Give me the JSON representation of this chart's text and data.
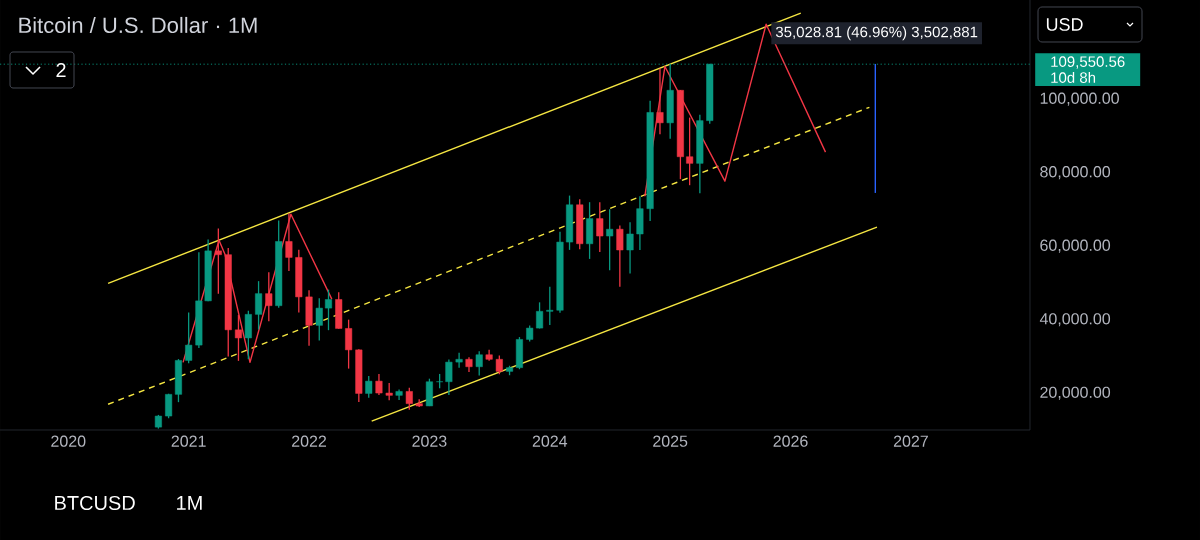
{
  "chart_data": {
    "type": "candlestick",
    "title": "Bitcoin / U.S. Dollar · 1M",
    "x": [
      "2020-10",
      "2020-11",
      "2020-12",
      "2021-01",
      "2021-02",
      "2021-03",
      "2021-04",
      "2021-05",
      "2021-06",
      "2021-07",
      "2021-08",
      "2021-09",
      "2021-10",
      "2021-11",
      "2021-12",
      "2022-01",
      "2022-02",
      "2022-03",
      "2022-04",
      "2022-05",
      "2022-06",
      "2022-07",
      "2022-08",
      "2022-09",
      "2022-10",
      "2022-11",
      "2022-12",
      "2023-01",
      "2023-02",
      "2023-03",
      "2023-04",
      "2023-05",
      "2023-06",
      "2023-07",
      "2023-08",
      "2023-09",
      "2023-10",
      "2023-11",
      "2023-12",
      "2024-01",
      "2024-02",
      "2024-03",
      "2024-04",
      "2024-05",
      "2024-06",
      "2024-07",
      "2024-08",
      "2024-09",
      "2024-10",
      "2024-11",
      "2024-12",
      "2025-01",
      "2025-02",
      "2025-03",
      "2025-04",
      "2025-05"
    ],
    "ohlc": [
      [
        10776,
        14100,
        10375,
        13791
      ],
      [
        13791,
        19863,
        13195,
        19695
      ],
      [
        19695,
        29300,
        17572,
        28923
      ],
      [
        28923,
        41950,
        28130,
        33092
      ],
      [
        33092,
        58352,
        32296,
        45135
      ],
      [
        45134,
        61844,
        45000,
        58741
      ],
      [
        58739,
        64854,
        47044,
        57694
      ],
      [
        57697,
        59500,
        30000,
        37253
      ],
      [
        37253,
        41330,
        28805,
        35045
      ],
      [
        35045,
        42448,
        29278,
        41461
      ],
      [
        41461,
        50500,
        37332,
        47100
      ],
      [
        47100,
        52920,
        39600,
        43824
      ],
      [
        43820,
        67000,
        43283,
        61299
      ],
      [
        61300,
        69000,
        53256,
        56950
      ],
      [
        56950,
        59053,
        42000,
        46216
      ],
      [
        46216,
        47990,
        32917,
        38466
      ],
      [
        38466,
        45821,
        34322,
        43160
      ],
      [
        43160,
        48190,
        37155,
        45510
      ],
      [
        45510,
        47444,
        37578,
        37630
      ],
      [
        37631,
        40023,
        26700,
        31801
      ],
      [
        31801,
        31982,
        17622,
        19942
      ],
      [
        19942,
        24668,
        18781,
        23293
      ],
      [
        23296,
        25211,
        19520,
        20050
      ],
      [
        20050,
        22799,
        18125,
        19423
      ],
      [
        19423,
        20988,
        18190,
        20491
      ],
      [
        20491,
        21480,
        15476,
        17164
      ],
      [
        17165,
        18388,
        16256,
        16542
      ],
      [
        16541,
        23960,
        16499,
        23125
      ],
      [
        23125,
        25250,
        21351,
        23141
      ],
      [
        23142,
        29184,
        19549,
        28465
      ],
      [
        28466,
        31000,
        26942,
        29233
      ],
      [
        29234,
        29820,
        25811,
        27211
      ],
      [
        27211,
        31431,
        24800,
        30472
      ],
      [
        30472,
        31804,
        28861,
        29232
      ],
      [
        29232,
        30244,
        25166,
        25941
      ],
      [
        25941,
        27483,
        24900,
        26963
      ],
      [
        26963,
        35280,
        26538,
        34640
      ],
      [
        34640,
        38450,
        34097,
        37724
      ],
      [
        37724,
        44729,
        37618,
        42284
      ],
      [
        42284,
        48969,
        38555,
        42580
      ],
      [
        42580,
        63913,
        41884,
        61130
      ],
      [
        61131,
        73777,
        59005,
        71280
      ],
      [
        71280,
        72797,
        59191,
        60672
      ],
      [
        60672,
        71980,
        56552,
        67520
      ],
      [
        67520,
        71997,
        58402,
        62772
      ],
      [
        62773,
        70080,
        53485,
        64628
      ],
      [
        64628,
        65660,
        49000,
        58974
      ],
      [
        58974,
        66498,
        52550,
        63327
      ],
      [
        63327,
        73620,
        58946,
        70215
      ],
      [
        70215,
        99588,
        66835,
        96407
      ],
      [
        96407,
        108353,
        90500,
        93576
      ],
      [
        93576,
        109588,
        89256,
        102429
      ],
      [
        102429,
        102500,
        78258,
        84350
      ],
      [
        84350,
        95000,
        76606,
        82550
      ],
      [
        82550,
        95758,
        74434,
        94172
      ],
      [
        94172,
        109550.56,
        93346,
        109550.56
      ]
    ],
    "colors": [
      "#089981",
      "#089981",
      "#089981",
      "#089981",
      "#089981",
      "#089981",
      "#f23645",
      "#f23645",
      "#f23645",
      "#089981",
      "#089981",
      "#f23645",
      "#089981",
      "#f23645",
      "#f23645",
      "#f23645",
      "#089981",
      "#089981",
      "#f23645",
      "#f23645",
      "#f23645",
      "#089981",
      "#f23645",
      "#f23645",
      "#089981",
      "#f23645",
      "#f23645",
      "#089981",
      "#089981",
      "#089981",
      "#089981",
      "#f23645",
      "#089981",
      "#f23645",
      "#f23645",
      "#089981",
      "#089981",
      "#089981",
      "#089981",
      "#089981",
      "#089981",
      "#089981",
      "#f23645",
      "#089981",
      "#f23645",
      "#089981",
      "#f23645",
      "#089981",
      "#089981",
      "#089981",
      "#f23645",
      "#089981",
      "#f23645",
      "#f23645",
      "#089981",
      "#089981"
    ],
    "series": [
      {
        "type": "line",
        "color": "#f5e642",
        "line_style": "solid",
        "x": [
          "2020-05-01",
          "2026-02-01"
        ],
        "values": [
          49900,
          123400
        ]
      },
      {
        "type": "line",
        "color": "#f5e642",
        "line_style": "solid",
        "x": [
          "2022-07-10",
          "2026-09-20"
        ],
        "values": [
          12400,
          65200
        ]
      },
      {
        "type": "line",
        "color": "#f5e642",
        "line_style": "dashed",
        "x": [
          "2020-05-01",
          "2026-08-28"
        ],
        "values": [
          17000,
          97800
        ]
      },
      {
        "type": "line",
        "color": "#f23645",
        "line_style": "solid",
        "x": [
          "2020-12-15",
          "2021-04-03",
          "2021-04-21",
          "2021-07-06",
          "2021-11-07",
          "2022-03-11",
          "2023-06-01",
          "2024-10-16",
          "2024-12-16",
          "2025-06-16",
          "2025-10-19",
          "2026-04-17"
        ],
        "values": [
          28400,
          61600,
          57800,
          28400,
          68700,
          45600,
          null,
          73600,
          108900,
          77700,
          120400,
          85600
        ]
      },
      {
        "type": "line",
        "color": "#2962ff",
        "line_style": "solid",
        "x": [
          "2026-09-15",
          "2026-09-15"
        ],
        "values": [
          74500,
          109600
        ]
      }
    ],
    "xlim": [
      "2019-06-08",
      "2027-12-28"
    ],
    "ylim": [
      10000,
      127000
    ],
    "xticks": [
      "2020",
      "2021",
      "2022",
      "2023",
      "2024",
      "2025",
      "2026",
      "2027"
    ],
    "yticks": [
      {
        "value": 20000,
        "label": "20,000.00"
      },
      {
        "value": 40000,
        "label": "40,000.00"
      },
      {
        "value": 60000,
        "label": "60,000.00"
      },
      {
        "value": 80000,
        "label": "80,000.00"
      },
      {
        "value": 100000,
        "label": "100,000.00"
      }
    ],
    "ref_lines": [
      {
        "axis": "y",
        "value": 109550.56,
        "label": "109,550.56",
        "color": "#089981",
        "line_style": "dotted"
      }
    ],
    "annotations": [
      {
        "text": "35,028.81 (46.96%) 3,502,881",
        "x": "2025-10-19",
        "y": 120400
      },
      "10d 8h",
      "2",
      "USD",
      "BTCUSD",
      "1M"
    ],
    "grid": false
  }
}
